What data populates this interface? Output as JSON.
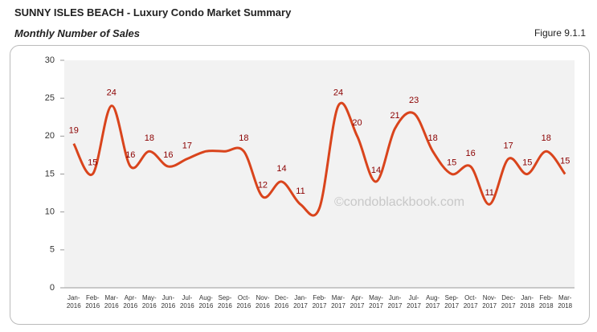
{
  "chart_data": {
    "type": "line",
    "title": "SUNNY ISLES BEACH - Luxury Condo Market Summary",
    "subtitle": "Monthly Number of Sales",
    "figure_label": "Figure 9.1.1",
    "watermark": "©condoblackbook.com",
    "categories": [
      "Jan-2016",
      "Feb-2016",
      "Mar-2016",
      "Apr-2016",
      "May-2016",
      "Jun-2016",
      "Jul-2016",
      "Aug-2016",
      "Sep-2016",
      "Oct-2016",
      "Nov-2016",
      "Dec-2016",
      "Jan-2017",
      "Feb-2017",
      "Mar-2017",
      "Apr-2017",
      "May-2017",
      "Jun-2017",
      "Jul-2017",
      "Aug-2017",
      "Sep-2017",
      "Oct-2017",
      "Nov-2017",
      "Dec-2017",
      "Jan-2018",
      "Feb-2018",
      "Mar-2018"
    ],
    "values": [
      19,
      15,
      24,
      16,
      18,
      16,
      17,
      18,
      18,
      18,
      12,
      14,
      11,
      10.5,
      24,
      20,
      14,
      21,
      23,
      18,
      15,
      16,
      11,
      17,
      15,
      18,
      15
    ],
    "value_labels": [
      "19",
      "15",
      "24",
      "16",
      "18",
      "16",
      "17",
      null,
      null,
      "18",
      "12",
      "14",
      "11",
      null,
      "24",
      "20",
      "14",
      "21",
      "23",
      "18",
      "15",
      "16",
      "11",
      "17",
      "15",
      "18",
      "15"
    ],
    "color": "#d9441c",
    "ylim": [
      0,
      30
    ],
    "yticks": [
      0,
      5,
      10,
      15,
      20,
      25,
      30
    ]
  }
}
